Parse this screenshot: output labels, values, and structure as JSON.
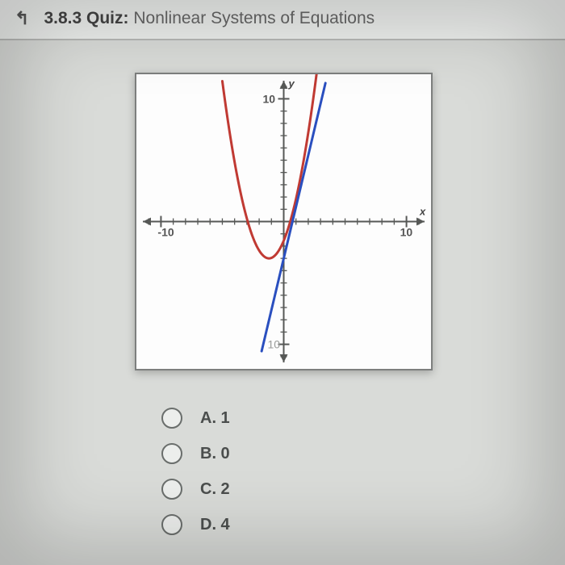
{
  "header": {
    "section_number": "3.8.3",
    "quiz_word": "Quiz:",
    "quiz_name": "Nonlinear Systems of Equations"
  },
  "graph": {
    "panel_size": 369,
    "background": "#fdfdfd",
    "border_color": "#7d7f7e",
    "axis_color": "#565856",
    "tick_color": "#565856",
    "domain": {
      "xmin": -12,
      "xmax": 12,
      "ymin": -12,
      "ymax": 12
    },
    "x_axis_label": "x",
    "y_axis_label": "y",
    "tick_step": 1,
    "major_ticks_x": [
      -10,
      10
    ],
    "major_ticks_y": [
      -10,
      10
    ],
    "tick_labels": {
      "x_neg": "-10",
      "x_pos": "10",
      "y_pos": "10",
      "y_neg_faded": "10"
    },
    "curves": {
      "parabola": {
        "type": "parabola",
        "color": "#c03a33",
        "stroke_width": 3,
        "vertex": {
          "x": -1.2,
          "y": -3.0
        },
        "a": 1.0,
        "x_range": [
          -5,
          2.7
        ]
      },
      "line": {
        "type": "line",
        "color": "#2a4fbf",
        "stroke_width": 3,
        "slope": 4.2,
        "intercept": -3.0,
        "x_range": [
          -1.8,
          3.4
        ]
      }
    }
  },
  "answers": [
    {
      "letter": "A.",
      "text": "1"
    },
    {
      "letter": "B.",
      "text": "0"
    },
    {
      "letter": "C.",
      "text": "2"
    },
    {
      "letter": "D.",
      "text": "4"
    }
  ]
}
